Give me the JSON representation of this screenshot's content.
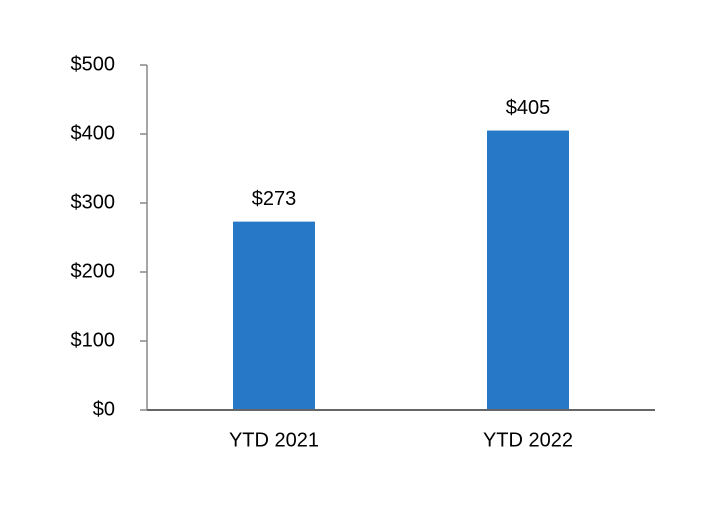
{
  "chart_data": {
    "type": "bar",
    "categories": [
      "YTD 2021",
      "YTD 2022"
    ],
    "values": [
      273,
      405
    ],
    "value_labels": [
      "$273",
      "$405"
    ],
    "color": "#2878c8",
    "ylim": [
      0,
      500
    ],
    "yticks": [
      {
        "value": 0,
        "label": "$0"
      },
      {
        "value": 100,
        "label": "$100"
      },
      {
        "value": 200,
        "label": "$200"
      },
      {
        "value": 300,
        "label": "$300"
      },
      {
        "value": 400,
        "label": "$400"
      },
      {
        "value": 500,
        "label": "$500"
      }
    ],
    "grid": false
  }
}
